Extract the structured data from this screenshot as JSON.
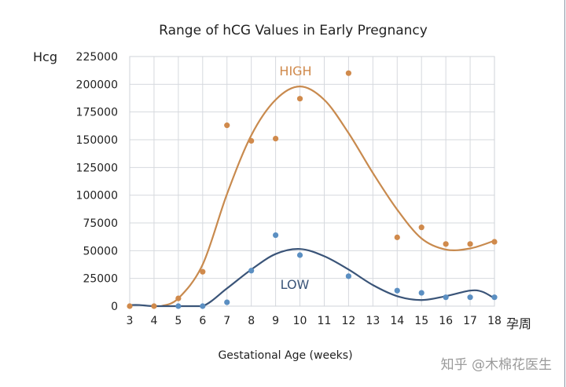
{
  "chart_data": {
    "type": "scatter",
    "title": "Range of hCG Values in Early Pregnancy",
    "ylabel": "Hcg",
    "xlabel": "Gestational Age (weeks)",
    "xunit_label": "孕周",
    "xlim": [
      3,
      18
    ],
    "ylim": [
      0,
      225000
    ],
    "xticks": [
      3,
      4,
      5,
      6,
      7,
      8,
      9,
      10,
      11,
      12,
      13,
      14,
      15,
      16,
      17,
      18
    ],
    "yticks": [
      0,
      25000,
      50000,
      75000,
      100000,
      125000,
      150000,
      175000,
      200000,
      225000
    ],
    "grid": true,
    "series": [
      {
        "name": "HIGH",
        "color": "#d08a4c",
        "line_color": "#c88a4e",
        "points": [
          [
            3,
            0
          ],
          [
            4,
            0
          ],
          [
            5,
            7000
          ],
          [
            6,
            31000
          ],
          [
            7,
            163000
          ],
          [
            8,
            149000
          ],
          [
            9,
            151000
          ],
          [
            10,
            187000
          ],
          [
            12,
            210000
          ],
          [
            14,
            62000
          ],
          [
            15,
            71000
          ],
          [
            16,
            56000
          ],
          [
            17,
            56000
          ],
          [
            18,
            58000
          ]
        ],
        "trend": [
          [
            4.3,
            0
          ],
          [
            5,
            7000
          ],
          [
            6,
            37500
          ],
          [
            7,
            101000
          ],
          [
            8,
            154000
          ],
          [
            9,
            186000
          ],
          [
            10,
            198000
          ],
          [
            11,
            186000
          ],
          [
            12,
            156000
          ],
          [
            13,
            120000
          ],
          [
            14,
            87000
          ],
          [
            15,
            61000
          ],
          [
            16,
            51000
          ],
          [
            17,
            52000
          ],
          [
            18,
            59000
          ]
        ]
      },
      {
        "name": "LOW",
        "color": "#5b8fc2",
        "line_color": "#3a5478",
        "points": [
          [
            5,
            0
          ],
          [
            6,
            0
          ],
          [
            7,
            3500
          ],
          [
            8,
            32000
          ],
          [
            9,
            64000
          ],
          [
            10,
            46000
          ],
          [
            12,
            27000
          ],
          [
            14,
            14000
          ],
          [
            15,
            12000
          ],
          [
            16,
            8000
          ],
          [
            17,
            8000
          ],
          [
            18,
            8000
          ]
        ],
        "trend": [
          [
            3,
            1000
          ],
          [
            3.4,
            1000
          ],
          [
            4,
            0
          ],
          [
            5,
            0
          ],
          [
            6,
            0
          ],
          [
            7,
            16000
          ],
          [
            8,
            33000
          ],
          [
            9,
            47000
          ],
          [
            10,
            51500
          ],
          [
            11,
            45000
          ],
          [
            12,
            33000
          ],
          [
            13,
            19000
          ],
          [
            14,
            9000
          ],
          [
            15,
            5500
          ],
          [
            16,
            9000
          ],
          [
            17,
            14000
          ],
          [
            17.5,
            13000
          ],
          [
            18,
            7000
          ]
        ]
      }
    ]
  },
  "watermark": "知乎 @木棉花医生"
}
